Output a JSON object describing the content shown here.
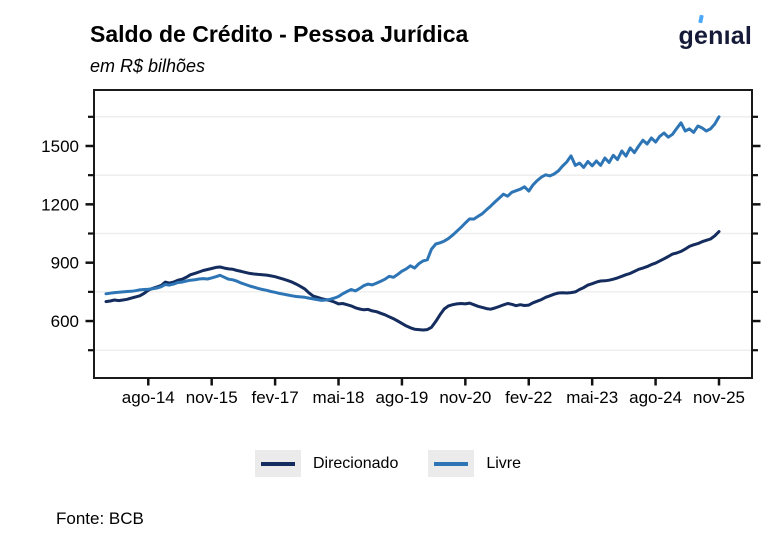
{
  "header": {
    "title": "Saldo de Crédito - Pessoa Jurídica",
    "subtitle": "em R$ bilhões",
    "logo": {
      "text_before": "g",
      "accent_letter": "e",
      "text_after": "nıal",
      "text_color": "#151A38",
      "accent_color": "#4FA8F7"
    }
  },
  "footer": {
    "source": "Fonte: BCB"
  },
  "legend": {
    "swatch_bg": "#EBEBEB",
    "items": [
      {
        "label": "Direcionado",
        "color": "#152D5E"
      },
      {
        "label": "Livre",
        "color": "#2E75B6"
      }
    ]
  },
  "chart_data": {
    "type": "line",
    "title": "Saldo de Crédito - Pessoa Jurídica",
    "ylabel": "em R$ bilhões",
    "grid": "horizontal-faint",
    "legend_position": "bottom",
    "frame_color": "#1a1a1a",
    "gridline_color": "#ECECEC",
    "ylim": [
      302,
      1793
    ],
    "y_major_ticks": [
      600,
      900,
      1200,
      1500
    ],
    "y_minor_ticks": [
      450,
      750,
      1050,
      1350,
      1650
    ],
    "gridline_values": [
      450,
      750,
      1050,
      1350,
      1650
    ],
    "x_tick_labels": [
      "ago-14",
      "nov-15",
      "fev-17",
      "mai-18",
      "ago-19",
      "nov-20",
      "fev-22",
      "mai-23",
      "ago-24",
      "nov-25"
    ],
    "x_tick_indices": [
      10,
      25,
      40,
      55,
      70,
      85,
      100,
      115,
      130,
      145
    ],
    "x_frequency": "monthly",
    "series": [
      {
        "name": "Direcionado",
        "color": "#152D5E",
        "values": [
          700,
          703,
          708,
          705,
          708,
          712,
          718,
          724,
          730,
          742,
          758,
          768,
          775,
          782,
          800,
          795,
          800,
          810,
          815,
          825,
          838,
          845,
          852,
          860,
          865,
          870,
          876,
          878,
          872,
          868,
          866,
          860,
          855,
          850,
          845,
          842,
          840,
          838,
          836,
          832,
          828,
          822,
          815,
          808,
          800,
          790,
          778,
          765,
          745,
          728,
          722,
          715,
          710,
          705,
          698,
          688,
          690,
          684,
          678,
          668,
          662,
          658,
          660,
          652,
          648,
          640,
          632,
          622,
          612,
          600,
          588,
          575,
          565,
          558,
          556,
          554,
          556,
          568,
          598,
          632,
          662,
          678,
          684,
          688,
          690,
          688,
          692,
          684,
          676,
          670,
          664,
          661,
          667,
          675,
          683,
          690,
          686,
          679,
          684,
          680,
          682,
          694,
          702,
          710,
          722,
          730,
          738,
          744,
          745,
          744,
          746,
          750,
          762,
          772,
          785,
          792,
          800,
          806,
          807,
          810,
          815,
          822,
          830,
          838,
          845,
          855,
          866,
          872,
          880,
          890,
          898,
          909,
          920,
          932,
          944,
          950,
          958,
          970,
          984,
          992,
          998,
          1008,
          1015,
          1022,
          1038,
          1060
        ]
      },
      {
        "name": "Livre",
        "color": "#2E75B6",
        "values": [
          740,
          743,
          746,
          748,
          750,
          752,
          753,
          756,
          760,
          762,
          763,
          766,
          770,
          776,
          788,
          785,
          790,
          798,
          800,
          806,
          810,
          812,
          816,
          818,
          816,
          822,
          828,
          835,
          825,
          815,
          812,
          805,
          795,
          788,
          780,
          774,
          768,
          762,
          758,
          752,
          748,
          742,
          738,
          734,
          730,
          726,
          724,
          722,
          718,
          714,
          710,
          706,
          708,
          712,
          718,
          726,
          740,
          752,
          762,
          755,
          768,
          782,
          790,
          786,
          795,
          805,
          815,
          830,
          825,
          840,
          856,
          868,
          884,
          872,
          895,
          909,
          915,
          970,
          996,
          1002,
          1011,
          1024,
          1042,
          1062,
          1082,
          1104,
          1125,
          1124,
          1138,
          1152,
          1172,
          1191,
          1212,
          1232,
          1252,
          1242,
          1262,
          1270,
          1278,
          1290,
          1268,
          1300,
          1322,
          1340,
          1352,
          1346,
          1356,
          1372,
          1397,
          1418,
          1449,
          1400,
          1412,
          1390,
          1420,
          1398,
          1423,
          1400,
          1438,
          1415,
          1452,
          1430,
          1474,
          1448,
          1490,
          1466,
          1500,
          1530,
          1510,
          1541,
          1520,
          1550,
          1567,
          1545,
          1560,
          1590,
          1619,
          1577,
          1588,
          1570,
          1603,
          1593,
          1577,
          1588,
          1613,
          1650
        ]
      }
    ]
  }
}
